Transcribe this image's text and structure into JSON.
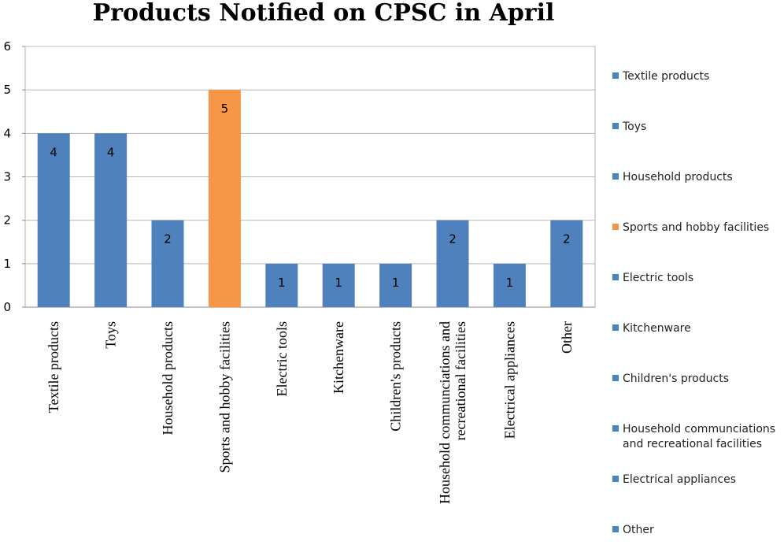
{
  "chart_data": {
    "type": "bar",
    "title": "Products Notified on CPSC in April",
    "xlabel": "",
    "ylabel": "",
    "ylim": [
      0,
      6
    ],
    "yticks": [
      0,
      1,
      2,
      3,
      4,
      5,
      6
    ],
    "grid": true,
    "legend_position": "right",
    "categories": [
      [
        "Textile products"
      ],
      [
        "Toys"
      ],
      [
        "Household products"
      ],
      [
        "Sports and hobby facilities"
      ],
      [
        "Electric tools"
      ],
      [
        "Kitchenware"
      ],
      [
        "Children's products"
      ],
      [
        "Household communciations and",
        "recreational facilities"
      ],
      [
        "Electrical appliances"
      ],
      [
        "Other"
      ]
    ],
    "values": [
      4,
      4,
      2,
      5,
      1,
      1,
      1,
      2,
      1,
      2
    ],
    "data_labels": [
      "4",
      "4",
      "2",
      "5",
      "1",
      "1",
      "1",
      "2",
      "1",
      "2"
    ],
    "colors": [
      "#4f81bd",
      "#4f81bd",
      "#4f81bd",
      "#f79646",
      "#4f81bd",
      "#4f81bd",
      "#4f81bd",
      "#4f81bd",
      "#4f81bd",
      "#4f81bd"
    ],
    "legend": [
      [
        "Textile products"
      ],
      [
        "Toys"
      ],
      [
        "Household products"
      ],
      [
        "Sports and hobby facilities"
      ],
      [
        "Electric tools"
      ],
      [
        "Kitchenware"
      ],
      [
        "Children's products"
      ],
      [
        "Household communciations",
        "and recreational facilities"
      ],
      [
        "Electrical appliances"
      ],
      [
        "Other"
      ]
    ]
  }
}
